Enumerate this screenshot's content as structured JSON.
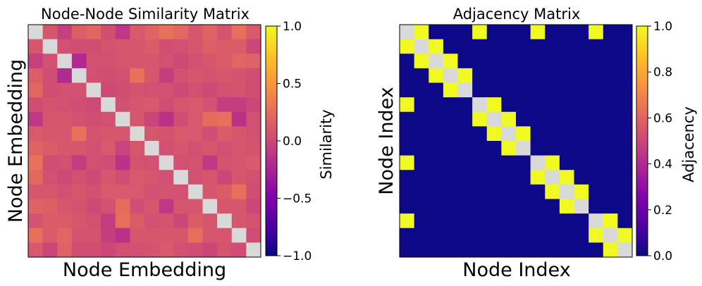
{
  "chart_data": [
    {
      "type": "heatmap",
      "title": "Node-Node Similarity Matrix",
      "xlabel": "Node Embedding",
      "ylabel": "Node Embedding",
      "colorbar": {
        "label": "Similarity",
        "ticks": [
          "1.0",
          "0.5",
          "0.0",
          "−0.5",
          "−1.0"
        ],
        "range": [
          -1.0,
          1.0
        ],
        "colormap": "plasma"
      },
      "diagonal_color": "#d9d9d9",
      "size": 16,
      "matrix": [
        [
          null,
          0.1,
          -0.05,
          0.15,
          0.2,
          0.05,
          -0.1,
          0.12,
          0.18,
          0.28,
          0.22,
          0.1,
          0.18,
          0.08,
          0.26,
          0.12
        ],
        [
          0.1,
          null,
          0.06,
          0.04,
          0.05,
          0.08,
          0.1,
          0.1,
          0.14,
          0.04,
          0.06,
          0.1,
          0.16,
          0.14,
          0.14,
          0.0
        ],
        [
          -0.05,
          0.06,
          null,
          -0.2,
          0.06,
          0.06,
          0.1,
          0.1,
          0.1,
          0.06,
          0.02,
          0.06,
          0.1,
          0.14,
          0.2,
          0.18
        ],
        [
          0.15,
          0.04,
          -0.2,
          null,
          0.06,
          0.04,
          0.06,
          0.28,
          0.1,
          -0.06,
          0.06,
          0.1,
          0.08,
          0.1,
          0.08,
          0.04
        ],
        [
          0.2,
          0.05,
          0.06,
          0.06,
          null,
          0.02,
          0.04,
          0.08,
          0.06,
          0.06,
          0.02,
          0.06,
          0.02,
          0.06,
          0.08,
          0.04
        ],
        [
          0.05,
          0.08,
          0.06,
          0.04,
          0.02,
          null,
          0.06,
          0.1,
          0.12,
          0.04,
          0.1,
          0.12,
          0.06,
          -0.06,
          -0.06,
          0.0
        ],
        [
          -0.1,
          0.1,
          0.1,
          0.06,
          0.04,
          0.06,
          null,
          0.1,
          -0.02,
          -0.14,
          0.04,
          0.12,
          0.24,
          0.26,
          -0.14,
          0.06
        ],
        [
          0.12,
          0.1,
          0.1,
          0.28,
          0.08,
          0.1,
          0.1,
          null,
          0.1,
          0.08,
          0.12,
          0.12,
          0.04,
          0.14,
          0.1,
          0.06
        ],
        [
          0.18,
          0.14,
          0.1,
          0.1,
          0.06,
          0.12,
          -0.02,
          0.1,
          null,
          0.06,
          0.1,
          0.06,
          0.1,
          0.06,
          0.1,
          0.08
        ],
        [
          0.28,
          0.04,
          0.06,
          -0.06,
          0.06,
          0.04,
          -0.14,
          0.08,
          0.06,
          null,
          0.06,
          0.08,
          -0.1,
          0.08,
          0.1,
          0.12
        ],
        [
          0.22,
          0.06,
          0.02,
          0.06,
          0.02,
          0.1,
          0.04,
          0.12,
          0.1,
          0.06,
          null,
          0.06,
          0.1,
          0.0,
          0.1,
          0.06
        ],
        [
          0.1,
          0.1,
          0.06,
          0.1,
          0.06,
          0.12,
          0.12,
          0.12,
          0.06,
          0.08,
          0.06,
          null,
          0.1,
          0.14,
          0.26,
          0.04
        ],
        [
          0.18,
          0.16,
          0.1,
          0.08,
          0.02,
          0.06,
          0.24,
          0.04,
          0.1,
          -0.1,
          0.1,
          0.1,
          null,
          0.1,
          0.1,
          0.0
        ],
        [
          0.08,
          0.14,
          0.14,
          0.1,
          0.06,
          -0.06,
          0.26,
          0.14,
          0.06,
          0.08,
          0.0,
          0.14,
          0.1,
          null,
          0.1,
          0.08
        ],
        [
          0.26,
          0.14,
          0.2,
          0.08,
          0.08,
          -0.06,
          -0.14,
          0.1,
          0.1,
          0.1,
          0.1,
          0.26,
          0.1,
          0.1,
          null,
          0.04
        ],
        [
          0.12,
          0.0,
          0.18,
          0.04,
          0.04,
          0.0,
          0.06,
          0.06,
          0.08,
          0.12,
          0.06,
          0.04,
          0.0,
          0.08,
          0.04,
          null
        ]
      ]
    },
    {
      "type": "heatmap",
      "title": "Adjacency Matrix",
      "xlabel": "Node Index",
      "ylabel": "Node Index",
      "colorbar": {
        "label": "Adjacency",
        "ticks": [
          "1.0",
          "0.8",
          "0.6",
          "0.4",
          "0.2",
          "0.0"
        ],
        "range": [
          0.0,
          1.0
        ],
        "colormap": "plasma"
      },
      "diagonal_color": "#d9d9d9",
      "size": 16,
      "matrix": [
        [
          null,
          1,
          0,
          0,
          0,
          1,
          0,
          0,
          0,
          1,
          0,
          0,
          0,
          1,
          0,
          0
        ],
        [
          1,
          null,
          1,
          0,
          0,
          0,
          0,
          0,
          0,
          0,
          0,
          0,
          0,
          0,
          0,
          0
        ],
        [
          0,
          1,
          null,
          1,
          0,
          0,
          0,
          0,
          0,
          0,
          0,
          0,
          0,
          0,
          0,
          0
        ],
        [
          0,
          0,
          1,
          null,
          1,
          0,
          0,
          0,
          0,
          0,
          0,
          0,
          0,
          0,
          0,
          0
        ],
        [
          0,
          0,
          0,
          1,
          null,
          0,
          0,
          0,
          0,
          0,
          0,
          0,
          0,
          0,
          0,
          0
        ],
        [
          1,
          0,
          0,
          0,
          0,
          null,
          1,
          0,
          0,
          0,
          0,
          0,
          0,
          0,
          0,
          0
        ],
        [
          0,
          0,
          0,
          0,
          0,
          1,
          null,
          1,
          0,
          0,
          0,
          0,
          0,
          0,
          0,
          0
        ],
        [
          0,
          0,
          0,
          0,
          0,
          0,
          1,
          null,
          1,
          0,
          0,
          0,
          0,
          0,
          0,
          0
        ],
        [
          0,
          0,
          0,
          0,
          0,
          0,
          0,
          1,
          null,
          0,
          0,
          0,
          0,
          0,
          0,
          0
        ],
        [
          1,
          0,
          0,
          0,
          0,
          0,
          0,
          0,
          0,
          null,
          1,
          0,
          0,
          0,
          0,
          0
        ],
        [
          0,
          0,
          0,
          0,
          0,
          0,
          0,
          0,
          0,
          1,
          null,
          1,
          0,
          0,
          0,
          0
        ],
        [
          0,
          0,
          0,
          0,
          0,
          0,
          0,
          0,
          0,
          0,
          1,
          null,
          1,
          0,
          0,
          0
        ],
        [
          0,
          0,
          0,
          0,
          0,
          0,
          0,
          0,
          0,
          0,
          0,
          1,
          null,
          0,
          0,
          0
        ],
        [
          1,
          0,
          0,
          0,
          0,
          0,
          0,
          0,
          0,
          0,
          0,
          0,
          0,
          null,
          1,
          0
        ],
        [
          0,
          0,
          0,
          0,
          0,
          0,
          0,
          0,
          0,
          0,
          0,
          0,
          0,
          1,
          null,
          1
        ],
        [
          0,
          0,
          0,
          0,
          0,
          0,
          0,
          0,
          0,
          0,
          0,
          0,
          0,
          0,
          1,
          null
        ]
      ]
    }
  ]
}
